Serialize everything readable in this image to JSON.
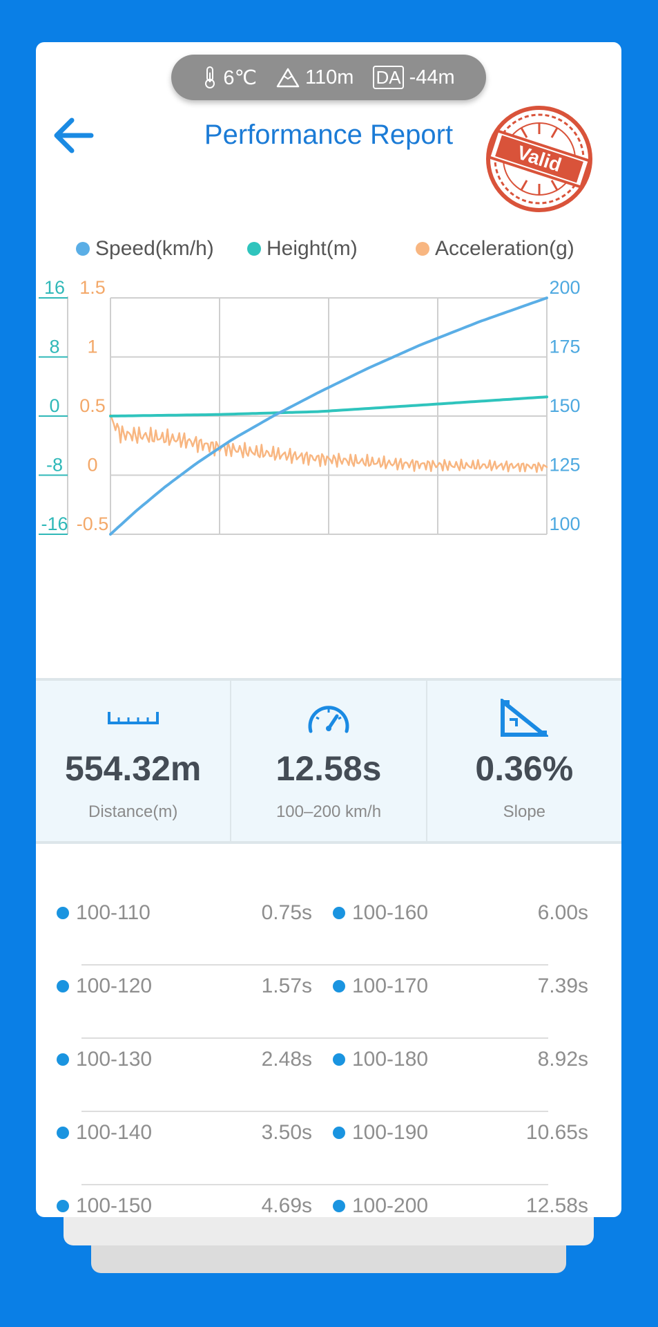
{
  "conditions": {
    "temperature": "6℃",
    "altitude": "110m",
    "da_badge": "DA",
    "density_altitude": "-44m"
  },
  "header": {
    "title": "Performance Report",
    "stamp_text": "Valid"
  },
  "legend": [
    {
      "label": "Speed(km/h)",
      "color": "#5aaee6"
    },
    {
      "label": "Height(m)",
      "color": "#2fc4bd"
    },
    {
      "label": "Acceleration(g)",
      "color": "#f8b681"
    }
  ],
  "chart_data": {
    "type": "line",
    "axes": {
      "height_left": {
        "ticks": [
          "16",
          "8",
          "0",
          "-8",
          "-16"
        ],
        "range": [
          -16,
          16
        ],
        "color": "#2fb8b8"
      },
      "accel_left": {
        "ticks": [
          "1.5",
          "1",
          "0.5",
          "0",
          "-0.5"
        ],
        "range": [
          -0.5,
          1.5
        ],
        "color": "#f3a869"
      },
      "speed_right": {
        "ticks": [
          "200",
          "175",
          "150",
          "125",
          "100"
        ],
        "range": [
          100,
          200
        ],
        "color": "#4ea9e0"
      }
    },
    "x_range": [
      0,
      12.58
    ],
    "grid": true,
    "series": [
      {
        "name": "Speed(km/h)",
        "axis": "speed_right",
        "color": "#5aaee6",
        "x": [
          0,
          0.75,
          1.57,
          2.48,
          3.5,
          4.69,
          6.0,
          7.39,
          8.92,
          10.65,
          12.58
        ],
        "y": [
          100,
          110,
          120,
          130,
          140,
          150,
          160,
          170,
          180,
          190,
          200
        ]
      },
      {
        "name": "Height(m)",
        "axis": "height_left",
        "color": "#2fc4bd",
        "x": [
          0,
          3,
          6,
          9,
          12.58
        ],
        "y": [
          0.0,
          0.2,
          0.6,
          1.5,
          2.6
        ]
      },
      {
        "name": "Acceleration(g)",
        "axis": "accel_left",
        "color": "#f8b681",
        "x": [
          0,
          0.3,
          1,
          2,
          3,
          4,
          5,
          6,
          7,
          8,
          9,
          10,
          11,
          12.58
        ],
        "y": [
          0.48,
          0.35,
          0.33,
          0.3,
          0.24,
          0.2,
          0.17,
          0.14,
          0.12,
          0.1,
          0.09,
          0.08,
          0.08,
          0.07
        ]
      }
    ]
  },
  "stats": [
    {
      "value": "554.32m",
      "label": "Distance(m)",
      "icon": "ruler-icon"
    },
    {
      "value": "12.58s",
      "label": "100–200 km/h",
      "icon": "speedometer-icon"
    },
    {
      "value": "0.36%",
      "label": "Slope",
      "icon": "slope-icon"
    }
  ],
  "splits": [
    {
      "range": "100-110",
      "time": "0.75s"
    },
    {
      "range": "100-120",
      "time": "1.57s"
    },
    {
      "range": "100-130",
      "time": "2.48s"
    },
    {
      "range": "100-140",
      "time": "3.50s"
    },
    {
      "range": "100-150",
      "time": "4.69s"
    },
    {
      "range": "100-160",
      "time": "6.00s"
    },
    {
      "range": "100-170",
      "time": "7.39s"
    },
    {
      "range": "100-180",
      "time": "8.92s"
    },
    {
      "range": "100-190",
      "time": "10.65s"
    },
    {
      "range": "100-200",
      "time": "12.58s"
    }
  ]
}
